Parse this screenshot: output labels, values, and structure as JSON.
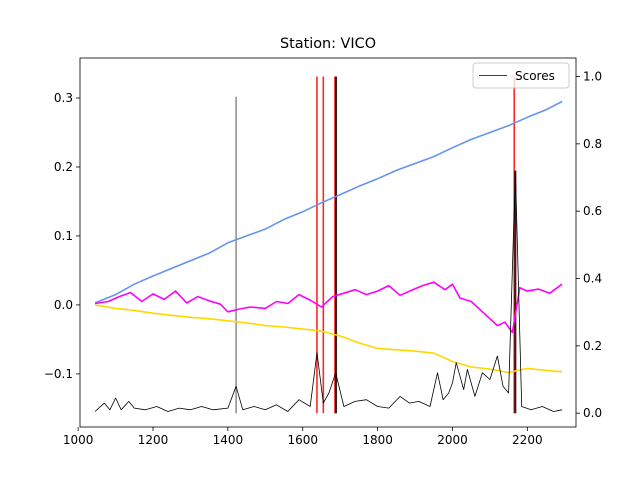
{
  "chart_data": {
    "type": "line",
    "title": "Station: VICO",
    "xlabel": "",
    "ylabel": "",
    "xlim": [
      1005,
      2330
    ],
    "ylim": [
      -0.177,
      0.358
    ],
    "y2lim": [
      -0.041,
      1.055
    ],
    "x_ticks": [
      1000,
      1200,
      1400,
      1600,
      1800,
      2000,
      2200
    ],
    "y_ticks": [
      -0.1,
      0.0,
      0.1,
      0.2,
      0.3
    ],
    "y_tick_labels": [
      "−0.1",
      "0.0",
      "0.1",
      "0.2",
      "0.3"
    ],
    "y2_ticks": [
      0.0,
      0.2,
      0.4,
      0.6,
      0.8,
      1.0
    ],
    "y2_tick_labels": [
      "0.0",
      "0.2",
      "0.4",
      "0.6",
      "0.8",
      "1.0"
    ],
    "grid": false,
    "legend": {
      "position": "top-right",
      "entries": [
        "Scores"
      ]
    },
    "colors": {
      "blue": "#6495ed",
      "magenta": "#ff00ff",
      "gold": "#ffd700",
      "scores": "#000000",
      "red_marker": "#ff0000",
      "gray_marker": "#808080"
    },
    "series": [
      {
        "color": "#6495ed",
        "axis": "left",
        "x": [
          1045,
          1100,
          1150,
          1200,
          1250,
          1300,
          1350,
          1400,
          1450,
          1500,
          1550,
          1600,
          1650,
          1700,
          1750,
          1800,
          1850,
          1900,
          1950,
          2000,
          2050,
          2100,
          2150,
          2200,
          2250,
          2293
        ],
        "y": [
          0.003,
          0.015,
          0.03,
          0.042,
          0.053,
          0.064,
          0.075,
          0.09,
          0.1,
          0.11,
          0.124,
          0.135,
          0.148,
          0.16,
          0.172,
          0.183,
          0.195,
          0.205,
          0.215,
          0.228,
          0.24,
          0.25,
          0.26,
          0.272,
          0.283,
          0.295
        ]
      },
      {
        "color": "#ff00ff",
        "axis": "left",
        "x": [
          1045,
          1080,
          1110,
          1140,
          1170,
          1200,
          1230,
          1260,
          1290,
          1320,
          1350,
          1380,
          1400,
          1430,
          1460,
          1500,
          1530,
          1560,
          1590,
          1620,
          1650,
          1680,
          1710,
          1740,
          1770,
          1800,
          1830,
          1860,
          1890,
          1920,
          1950,
          1980,
          2000,
          2020,
          2050,
          2080,
          2100,
          2120,
          2140,
          2160,
          2180,
          2200,
          2230,
          2260,
          2293
        ],
        "y": [
          0.002,
          0.005,
          0.012,
          0.018,
          0.005,
          0.016,
          0.008,
          0.02,
          0.003,
          0.012,
          0.006,
          0.001,
          -0.01,
          -0.006,
          -0.003,
          -0.005,
          0.005,
          0.002,
          0.015,
          0.007,
          -0.003,
          0.012,
          0.017,
          0.022,
          0.015,
          0.02,
          0.028,
          0.014,
          0.021,
          0.028,
          0.033,
          0.022,
          0.03,
          0.01,
          0.005,
          -0.01,
          -0.02,
          -0.03,
          -0.025,
          -0.04,
          0.025,
          0.02,
          0.023,
          0.017,
          0.03
        ]
      },
      {
        "color": "#ffd700",
        "axis": "left",
        "x": [
          1045,
          1100,
          1150,
          1200,
          1250,
          1300,
          1350,
          1400,
          1450,
          1500,
          1550,
          1600,
          1650,
          1700,
          1750,
          1800,
          1850,
          1900,
          1950,
          2000,
          2050,
          2100,
          2150,
          2200,
          2250,
          2293
        ],
        "y": [
          0.0,
          -0.005,
          -0.008,
          -0.012,
          -0.015,
          -0.018,
          -0.02,
          -0.023,
          -0.026,
          -0.03,
          -0.032,
          -0.035,
          -0.038,
          -0.045,
          -0.055,
          -0.063,
          -0.065,
          -0.067,
          -0.07,
          -0.082,
          -0.09,
          -0.093,
          -0.098,
          -0.092,
          -0.095,
          -0.097
        ]
      },
      {
        "name": "Scores",
        "color": "#000000",
        "axis": "right",
        "x": [
          1045,
          1070,
          1085,
          1100,
          1115,
          1135,
          1150,
          1180,
          1210,
          1240,
          1270,
          1300,
          1330,
          1360,
          1400,
          1422,
          1440,
          1470,
          1500,
          1530,
          1560,
          1590,
          1620,
          1638,
          1655,
          1670,
          1688,
          1710,
          1740,
          1770,
          1800,
          1830,
          1860,
          1885,
          1910,
          1940,
          1960,
          1975,
          1990,
          2000,
          2010,
          2020,
          2030,
          2040,
          2060,
          2080,
          2100,
          2120,
          2135,
          2150,
          2168,
          2185,
          2210,
          2240,
          2270,
          2293
        ],
        "y": [
          0.005,
          0.03,
          0.01,
          0.045,
          0.01,
          0.035,
          0.015,
          0.01,
          0.02,
          0.005,
          0.015,
          0.01,
          0.02,
          0.01,
          0.015,
          0.08,
          0.01,
          0.02,
          0.01,
          0.025,
          0.005,
          0.04,
          0.02,
          0.18,
          0.03,
          0.06,
          0.12,
          0.02,
          0.035,
          0.04,
          0.02,
          0.015,
          0.05,
          0.03,
          0.035,
          0.02,
          0.12,
          0.04,
          0.06,
          0.09,
          0.15,
          0.11,
          0.07,
          0.13,
          0.05,
          0.12,
          0.1,
          0.17,
          0.08,
          0.06,
          0.72,
          0.02,
          0.01,
          0.02,
          0.005,
          0.01
        ]
      }
    ],
    "vertical_markers": [
      {
        "x": 1422,
        "color": "#808080",
        "y2_top": 0.94
      },
      {
        "x": 1638,
        "color": "#ff0000",
        "y2_top": 1.0
      },
      {
        "x": 1655,
        "color": "#ff0000",
        "y2_top": 1.0
      },
      {
        "x": 1686,
        "color": "#ff0000",
        "y2_top": 1.0
      },
      {
        "x": 1689,
        "color": "#000000",
        "y2_top": 1.0
      },
      {
        "x": 2165,
        "color": "#ff0000",
        "y2_top": 1.0
      },
      {
        "x": 2168,
        "color": "#000000",
        "y2_top": 0.72
      }
    ]
  }
}
